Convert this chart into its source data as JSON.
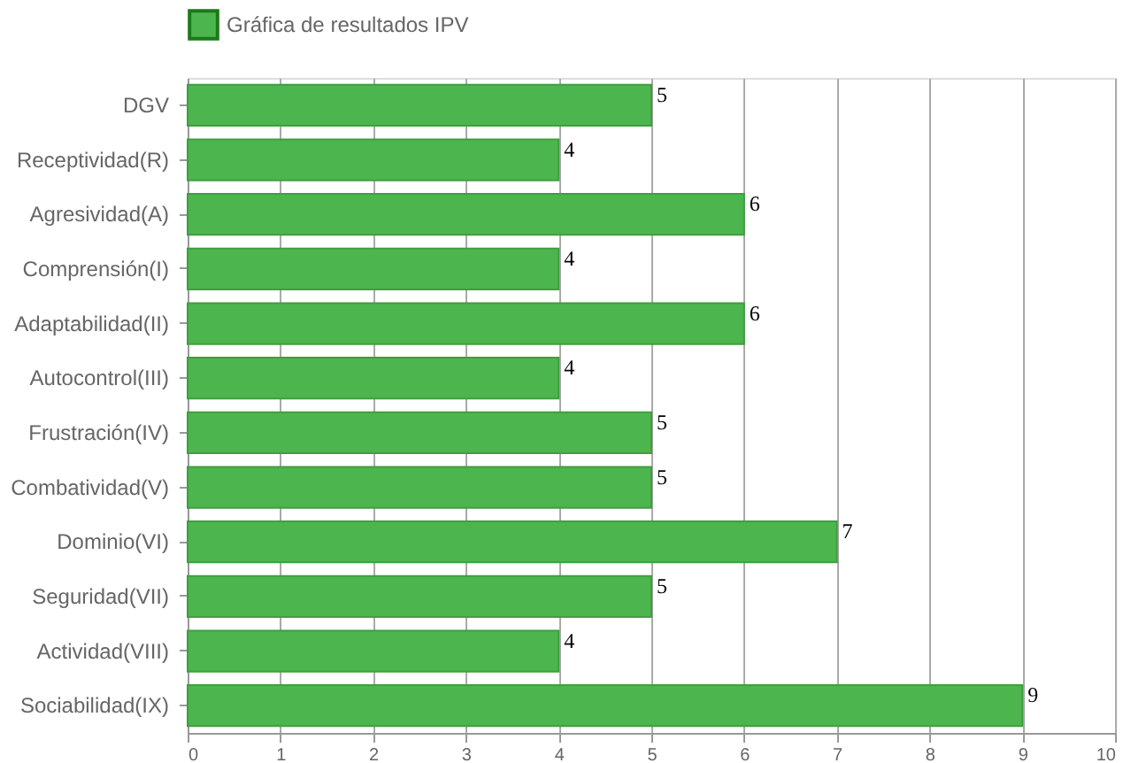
{
  "chart_data": {
    "type": "bar",
    "orientation": "horizontal",
    "categories": [
      "DGV",
      "Receptividad(R)",
      "Agresividad(A)",
      "Comprensión(I)",
      "Adaptabilidad(II)",
      "Autocontrol(III)",
      "Frustración(IV)",
      "Combatividad(V)",
      "Dominio(VI)",
      "Seguridad(VII)",
      "Actividad(VIII)",
      "Sociabilidad(IX)"
    ],
    "series": [
      {
        "name": "Gráfica de resultados IPV",
        "color": "#4db54d",
        "values": [
          5,
          4,
          6,
          4,
          6,
          4,
          5,
          5,
          7,
          5,
          4,
          9
        ]
      }
    ],
    "xlim": [
      0,
      10
    ],
    "xticks": [
      0,
      1,
      2,
      3,
      4,
      5,
      6,
      7,
      8,
      9,
      10
    ],
    "grid": "x",
    "legend": "top",
    "data_labels": true
  }
}
